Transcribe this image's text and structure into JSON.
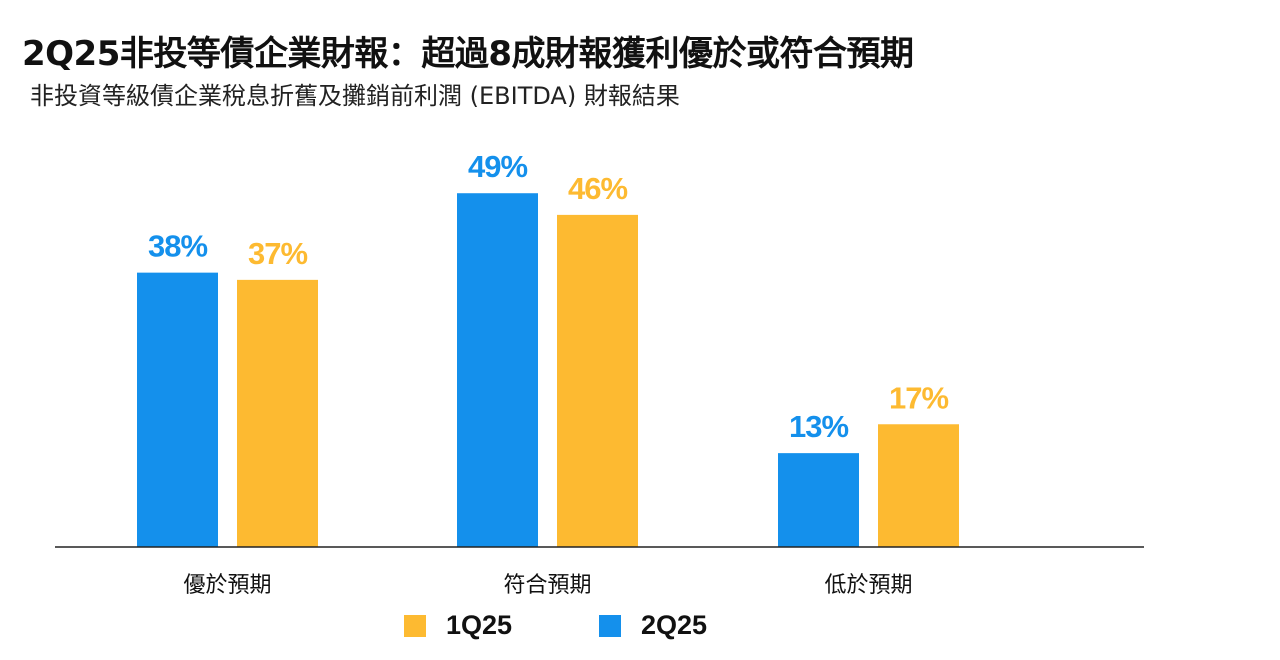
{
  "title": "2Q25非投等債企業財報：超過8成財報獲利優於或符合預期",
  "subtitle": "非投資等級債企業稅息折舊及攤銷前利潤 (EBITDA) 財報結果",
  "colors": {
    "1Q25": "#FDBA31",
    "2Q25": "#1490EC"
  },
  "chart_data": {
    "type": "bar",
    "title": "2Q25非投等債企業財報：超過8成財報獲利優於或符合預期",
    "subtitle": "非投資等級債企業稅息折舊及攤銷前利潤 (EBITDA) 財報結果",
    "categories": [
      "優於預期",
      "符合預期",
      "低於預期"
    ],
    "series": [
      {
        "name": "2Q25",
        "values": [
          38,
          49,
          13
        ],
        "labels": [
          "38%",
          "49%",
          "13%"
        ]
      },
      {
        "name": "1Q25",
        "values": [
          37,
          46,
          17
        ],
        "labels": [
          "37%",
          "46%",
          "17%"
        ]
      }
    ],
    "unit": "%",
    "ylim": [
      0,
      50
    ],
    "grid": false,
    "legend": "bottom"
  },
  "legend": [
    {
      "name": "1Q25"
    },
    {
      "name": "2Q25"
    }
  ]
}
